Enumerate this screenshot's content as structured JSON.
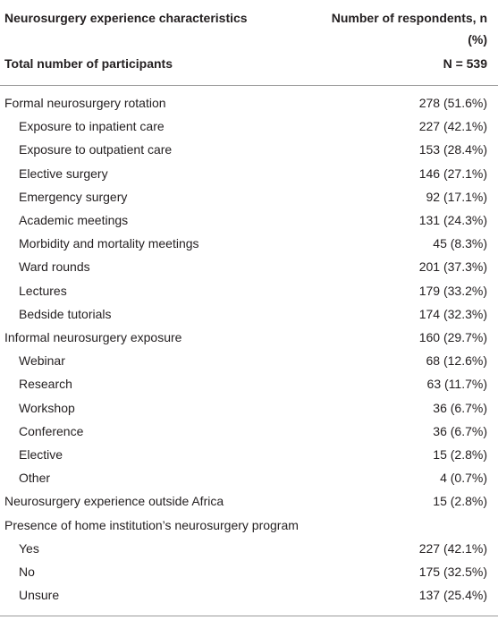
{
  "header": {
    "characteristic": "Neurosurgery experience characteristics",
    "respondents": "Number of respondents, n (%)"
  },
  "total": {
    "label": "Total number of participants",
    "value": "N = 539"
  },
  "groups": [
    {
      "label": "Formal neurosurgery rotation",
      "value": "278 (51.6%)",
      "items": [
        {
          "label": "Exposure to inpatient care",
          "value": "227 (42.1%)"
        },
        {
          "label": "Exposure to outpatient care",
          "value": "153 (28.4%)"
        },
        {
          "label": "Elective surgery",
          "value": "146 (27.1%)"
        },
        {
          "label": "Emergency surgery",
          "value": "92 (17.1%)"
        },
        {
          "label": "Academic meetings",
          "value": "131 (24.3%)"
        },
        {
          "label": "Morbidity and mortality meetings",
          "value": "45 (8.3%)"
        },
        {
          "label": "Ward rounds",
          "value": "201 (37.3%)"
        },
        {
          "label": "Lectures",
          "value": "179 (33.2%)"
        },
        {
          "label": "Bedside tutorials",
          "value": "174 (32.3%)"
        }
      ]
    },
    {
      "label": "Informal neurosurgery exposure",
      "value": "160 (29.7%)",
      "items": [
        {
          "label": "Webinar",
          "value": "68 (12.6%)"
        },
        {
          "label": "Research",
          "value": "63 (11.7%)"
        },
        {
          "label": "Workshop",
          "value": "36 (6.7%)"
        },
        {
          "label": "Conference",
          "value": "36 (6.7%)"
        },
        {
          "label": "Elective",
          "value": "15 (2.8%)"
        },
        {
          "label": "Other",
          "value": "4 (0.7%)"
        }
      ]
    },
    {
      "label": "Neurosurgery experience outside Africa",
      "value": "15 (2.8%)",
      "items": []
    },
    {
      "label": "Presence of home institution’s neurosurgery program",
      "items": [
        {
          "label": "Yes",
          "value": "227 (42.1%)"
        },
        {
          "label": "No",
          "value": "175 (32.5%)"
        },
        {
          "label": "Unsure",
          "value": "137 (25.4%)"
        }
      ]
    }
  ]
}
